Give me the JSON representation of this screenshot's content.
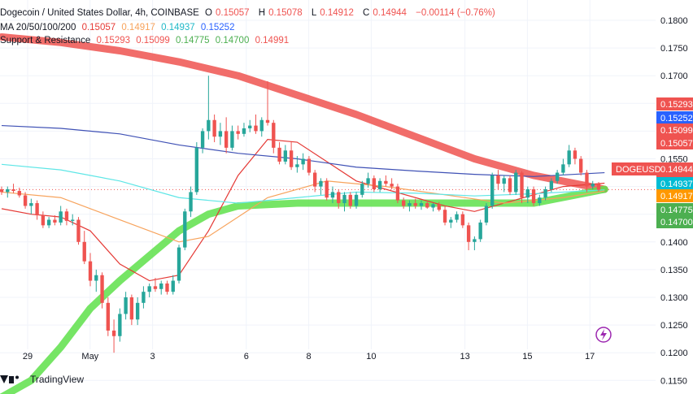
{
  "legend": {
    "symbol": "Dogecoin / United States Dollar, 4h, COINBASE",
    "o_label": "O",
    "o_value": "0.15057",
    "h_label": "H",
    "h_value": "0.15078",
    "l_label": "L",
    "l_value": "0.14912",
    "c_label": "C",
    "c_value": "0.14944",
    "change": "−0.00114 (−0.76%)",
    "ma_title": "MA 20/50/100/200",
    "ma_values": [
      "0.15057",
      "0.14917",
      "0.14937",
      "0.15252"
    ],
    "sr_title": "Support & Resistance",
    "sr_values": [
      "0.15293",
      "0.15099",
      "0.14775",
      "0.14700",
      "0.14991"
    ]
  },
  "colors": {
    "up": "#26a69a",
    "down": "#ef5350",
    "ma20": "#e53935",
    "ma50": "#f7a35c",
    "ma100": "#5ee6e6",
    "ma200": "#3f51b5",
    "resistance": "#ef5350",
    "support": "#5ee04a"
  },
  "footer": {
    "brand": "TradingView",
    "logo_icon": "tradingview-logo-icon"
  },
  "chart_data": {
    "type": "candlestick",
    "title": "Dogecoin / United States Dollar, 4h, COINBASE",
    "ylim": [
      0.115,
      0.181
    ],
    "y_ticks": [
      "0.1800",
      "0.1750",
      "0.1700",
      "0.1650",
      "0.1600",
      "0.1550",
      "0.1500",
      "0.1450",
      "0.1400",
      "0.1350",
      "0.1300",
      "0.1250",
      "0.1200",
      "0.1150"
    ],
    "x_labels": [
      {
        "label": "29",
        "day": 0
      },
      {
        "label": "May",
        "day": 2
      },
      {
        "label": "3",
        "day": 4
      },
      {
        "label": "6",
        "day": 7
      },
      {
        "label": "8",
        "day": 9
      },
      {
        "label": "10",
        "day": 11
      },
      {
        "label": "13",
        "day": 14
      },
      {
        "label": "15",
        "day": 16
      },
      {
        "label": "17",
        "day": 18
      }
    ],
    "current_price": {
      "symbol": "DOGEUSD",
      "value": "0.14944"
    },
    "price_labels": [
      {
        "value": "0.15293",
        "color": "#ef5350"
      },
      {
        "value": "0.15252",
        "color": "#2962ff"
      },
      {
        "value": "0.15099",
        "color": "#ef5350"
      },
      {
        "value": "0.15057",
        "color": "#ef5350"
      },
      {
        "value": "0.14991",
        "color": "#ef5350"
      },
      {
        "value": "0.14937",
        "color": "#00bcd4"
      },
      {
        "value": "0.14917",
        "color": "#ff9800"
      },
      {
        "value": "0.14775",
        "color": "#4caf50"
      },
      {
        "value": "0.14700",
        "color": "#4caf50"
      }
    ],
    "candles": [
      [
        0.1495,
        0.15,
        0.1485,
        0.149
      ],
      [
        0.149,
        0.15,
        0.148,
        0.1495
      ],
      [
        0.1495,
        0.1505,
        0.1488,
        0.1492
      ],
      [
        0.1492,
        0.1498,
        0.148,
        0.1484
      ],
      [
        0.1484,
        0.149,
        0.146,
        0.1465
      ],
      [
        0.1465,
        0.1478,
        0.145,
        0.147
      ],
      [
        0.147,
        0.1475,
        0.144,
        0.1448
      ],
      [
        0.1448,
        0.1455,
        0.1425,
        0.143
      ],
      [
        0.143,
        0.1445,
        0.1425,
        0.144
      ],
      [
        0.144,
        0.1448,
        0.143,
        0.1435
      ],
      [
        0.1435,
        0.1465,
        0.143,
        0.1455
      ],
      [
        0.1455,
        0.146,
        0.143,
        0.1438
      ],
      [
        0.1438,
        0.145,
        0.143,
        0.144
      ],
      [
        0.144,
        0.1445,
        0.1395,
        0.14
      ],
      [
        0.14,
        0.142,
        0.136,
        0.1365
      ],
      [
        0.1365,
        0.138,
        0.132,
        0.133
      ],
      [
        0.133,
        0.135,
        0.131,
        0.134
      ],
      [
        0.134,
        0.1345,
        0.128,
        0.129
      ],
      [
        0.129,
        0.13,
        0.123,
        0.124
      ],
      [
        0.124,
        0.126,
        0.12,
        0.123
      ],
      [
        0.123,
        0.128,
        0.122,
        0.127
      ],
      [
        0.127,
        0.131,
        0.126,
        0.13
      ],
      [
        0.13,
        0.1305,
        0.125,
        0.126
      ],
      [
        0.126,
        0.13,
        0.125,
        0.129
      ],
      [
        0.129,
        0.132,
        0.128,
        0.131
      ],
      [
        0.131,
        0.1325,
        0.13,
        0.132
      ],
      [
        0.132,
        0.1335,
        0.131,
        0.1315
      ],
      [
        0.1315,
        0.133,
        0.1305,
        0.1325
      ],
      [
        0.1325,
        0.133,
        0.1305,
        0.131
      ],
      [
        0.131,
        0.134,
        0.1305,
        0.133
      ],
      [
        0.133,
        0.1395,
        0.1325,
        0.139
      ],
      [
        0.139,
        0.146,
        0.1385,
        0.1455
      ],
      [
        0.1455,
        0.15,
        0.1445,
        0.149
      ],
      [
        0.149,
        0.158,
        0.1485,
        0.157
      ],
      [
        0.157,
        0.1605,
        0.156,
        0.16
      ],
      [
        0.16,
        0.17,
        0.1585,
        0.162
      ],
      [
        0.162,
        0.163,
        0.158,
        0.159
      ],
      [
        0.159,
        0.1615,
        0.1575,
        0.16
      ],
      [
        0.16,
        0.1625,
        0.156,
        0.157
      ],
      [
        0.157,
        0.161,
        0.1565,
        0.16
      ],
      [
        0.16,
        0.161,
        0.1585,
        0.1595
      ],
      [
        0.1595,
        0.1615,
        0.159,
        0.1605
      ],
      [
        0.1605,
        0.162,
        0.1598,
        0.161
      ],
      [
        0.161,
        0.163,
        0.1595,
        0.16
      ],
      [
        0.16,
        0.1625,
        0.159,
        0.162
      ],
      [
        0.162,
        0.169,
        0.161,
        0.1615
      ],
      [
        0.1615,
        0.162,
        0.156,
        0.157
      ],
      [
        0.157,
        0.158,
        0.154,
        0.1545
      ],
      [
        0.1545,
        0.1575,
        0.154,
        0.1565
      ],
      [
        0.1565,
        0.158,
        0.153,
        0.1535
      ],
      [
        0.1535,
        0.1555,
        0.1525,
        0.154
      ],
      [
        0.154,
        0.156,
        0.153,
        0.155
      ],
      [
        0.155,
        0.1555,
        0.152,
        0.1525
      ],
      [
        0.1525,
        0.153,
        0.149,
        0.15
      ],
      [
        0.15,
        0.1515,
        0.1485,
        0.151
      ],
      [
        0.151,
        0.1515,
        0.1475,
        0.148
      ],
      [
        0.148,
        0.15,
        0.147,
        0.149
      ],
      [
        0.149,
        0.1495,
        0.146,
        0.147
      ],
      [
        0.147,
        0.149,
        0.1455,
        0.1485
      ],
      [
        0.1485,
        0.149,
        0.146,
        0.1465
      ],
      [
        0.1465,
        0.149,
        0.146,
        0.1485
      ],
      [
        0.1485,
        0.151,
        0.148,
        0.1505
      ],
      [
        0.1505,
        0.1525,
        0.1498,
        0.1515
      ],
      [
        0.1515,
        0.152,
        0.149,
        0.1495
      ],
      [
        0.1495,
        0.1515,
        0.149,
        0.151
      ],
      [
        0.151,
        0.152,
        0.15,
        0.1505
      ],
      [
        0.1505,
        0.1515,
        0.1495,
        0.15
      ],
      [
        0.15,
        0.1505,
        0.147,
        0.1475
      ],
      [
        0.1475,
        0.148,
        0.146,
        0.1465
      ],
      [
        0.1465,
        0.1475,
        0.1455,
        0.147
      ],
      [
        0.147,
        0.1478,
        0.146,
        0.1465
      ],
      [
        0.1465,
        0.1475,
        0.1458,
        0.147
      ],
      [
        0.147,
        0.1475,
        0.146,
        0.1462
      ],
      [
        0.1462,
        0.147,
        0.1455,
        0.1468
      ],
      [
        0.1468,
        0.1472,
        0.1455,
        0.1458
      ],
      [
        0.1458,
        0.1465,
        0.143,
        0.1435
      ],
      [
        0.1435,
        0.1445,
        0.1425,
        0.144
      ],
      [
        0.144,
        0.1455,
        0.1435,
        0.145
      ],
      [
        0.145,
        0.1455,
        0.1425,
        0.143
      ],
      [
        0.143,
        0.1435,
        0.1385,
        0.14
      ],
      [
        0.14,
        0.141,
        0.1385,
        0.1405
      ],
      [
        0.1405,
        0.144,
        0.14,
        0.1435
      ],
      [
        0.1435,
        0.147,
        0.143,
        0.1465
      ],
      [
        0.1465,
        0.1525,
        0.146,
        0.152
      ],
      [
        0.152,
        0.153,
        0.1495,
        0.1505
      ],
      [
        0.1505,
        0.152,
        0.149,
        0.1515
      ],
      [
        0.1515,
        0.152,
        0.1485,
        0.149
      ],
      [
        0.149,
        0.153,
        0.1485,
        0.1525
      ],
      [
        0.1525,
        0.1528,
        0.147,
        0.148
      ],
      [
        0.148,
        0.15,
        0.147,
        0.1495
      ],
      [
        0.1495,
        0.15,
        0.1465,
        0.147
      ],
      [
        0.147,
        0.1485,
        0.1465,
        0.148
      ],
      [
        0.148,
        0.15,
        0.1475,
        0.1495
      ],
      [
        0.1495,
        0.1515,
        0.149,
        0.151
      ],
      [
        0.151,
        0.153,
        0.1505,
        0.1525
      ],
      [
        0.1525,
        0.155,
        0.152,
        0.154
      ],
      [
        0.154,
        0.1575,
        0.1535,
        0.1565
      ],
      [
        0.1565,
        0.157,
        0.154,
        0.155
      ],
      [
        0.155,
        0.1555,
        0.152,
        0.1525
      ],
      [
        0.1525,
        0.153,
        0.149,
        0.15
      ],
      [
        0.15,
        0.151,
        0.1495,
        0.1505
      ],
      [
        0.1505,
        0.1508,
        0.1491,
        0.1494
      ]
    ],
    "series": [
      {
        "name": "MA 20",
        "color": "#e53935",
        "values": [
          [
            0,
            0.146
          ],
          [
            5,
            0.145
          ],
          [
            10,
            0.1445
          ],
          [
            15,
            0.142
          ],
          [
            20,
            0.136
          ],
          [
            25,
            0.133
          ],
          [
            30,
            0.134
          ],
          [
            35,
            0.142
          ],
          [
            40,
            0.152
          ],
          [
            45,
            0.1585
          ],
          [
            50,
            0.158
          ],
          [
            55,
            0.1545
          ],
          [
            60,
            0.151
          ],
          [
            65,
            0.1495
          ],
          [
            70,
            0.148
          ],
          [
            75,
            0.1465
          ],
          [
            80,
            0.1455
          ],
          [
            85,
            0.147
          ],
          [
            90,
            0.1485
          ],
          [
            95,
            0.15
          ],
          [
            102,
            0.1506
          ]
        ]
      },
      {
        "name": "MA 50",
        "color": "#f7a35c",
        "values": [
          [
            0,
            0.149
          ],
          [
            10,
            0.148
          ],
          [
            20,
            0.144
          ],
          [
            30,
            0.14
          ],
          [
            35,
            0.141
          ],
          [
            45,
            0.148
          ],
          [
            55,
            0.151
          ],
          [
            65,
            0.15
          ],
          [
            75,
            0.1485
          ],
          [
            85,
            0.147
          ],
          [
            95,
            0.148
          ],
          [
            102,
            0.1492
          ]
        ]
      },
      {
        "name": "MA 100",
        "color": "#5ee6e6",
        "values": [
          [
            0,
            0.154
          ],
          [
            10,
            0.153
          ],
          [
            20,
            0.151
          ],
          [
            30,
            0.148
          ],
          [
            40,
            0.147
          ],
          [
            50,
            0.148
          ],
          [
            60,
            0.149
          ],
          [
            70,
            0.1488
          ],
          [
            80,
            0.1483
          ],
          [
            90,
            0.1487
          ],
          [
            102,
            0.1494
          ]
        ]
      },
      {
        "name": "MA 200",
        "color": "#3f51b5",
        "values": [
          [
            0,
            0.161
          ],
          [
            10,
            0.1605
          ],
          [
            20,
            0.1595
          ],
          [
            30,
            0.1575
          ],
          [
            40,
            0.156
          ],
          [
            50,
            0.155
          ],
          [
            60,
            0.1535
          ],
          [
            70,
            0.1528
          ],
          [
            80,
            0.1522
          ],
          [
            90,
            0.1518
          ],
          [
            102,
            0.1525
          ]
        ]
      }
    ],
    "bands": [
      {
        "name": "Resistance",
        "color": "#ef5350",
        "values": [
          [
            0,
            0.177
          ],
          [
            10,
            0.176
          ],
          [
            20,
            0.1745
          ],
          [
            30,
            0.1725
          ],
          [
            40,
            0.17
          ],
          [
            50,
            0.1665
          ],
          [
            60,
            0.163
          ],
          [
            70,
            0.159
          ],
          [
            80,
            0.155
          ],
          [
            90,
            0.152
          ],
          [
            102,
            0.1495
          ]
        ]
      },
      {
        "name": "Support",
        "color": "#5ee04a",
        "values": [
          [
            0,
            0.112
          ],
          [
            5,
            0.115
          ],
          [
            10,
            0.121
          ],
          [
            15,
            0.128
          ],
          [
            20,
            0.133
          ],
          [
            25,
            0.1375
          ],
          [
            30,
            0.142
          ],
          [
            35,
            0.145
          ],
          [
            40,
            0.1465
          ],
          [
            50,
            0.147
          ],
          [
            60,
            0.147
          ],
          [
            70,
            0.147
          ],
          [
            80,
            0.147
          ],
          [
            90,
            0.147
          ],
          [
            102,
            0.1495
          ]
        ]
      }
    ]
  }
}
